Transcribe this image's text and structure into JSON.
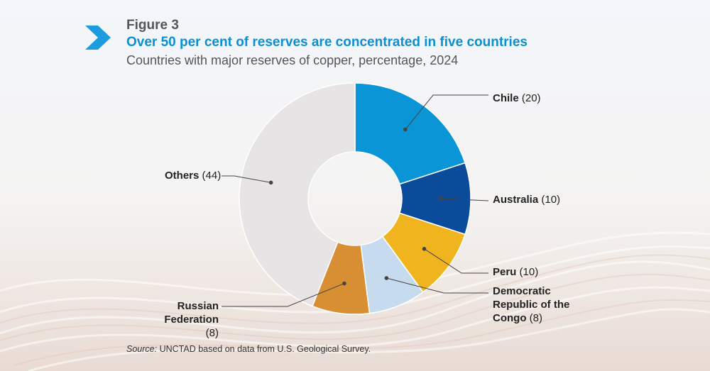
{
  "figure_label": "Figure 3",
  "chart_data": {
    "type": "pie",
    "donut": true,
    "title": "Over 50 per cent of reserves are concentrated in five countries",
    "subtitle": "Countries with major reserves of copper, percentage, 2024",
    "slices": [
      {
        "name": "Chile",
        "value": 20,
        "value_label": "(20)",
        "color": "#0a95d6"
      },
      {
        "name": "Australia",
        "value": 10,
        "value_label": "(10)",
        "color": "#0a4c9a"
      },
      {
        "name": "Peru",
        "value": 10,
        "value_label": "(10)",
        "color": "#f0b51e"
      },
      {
        "name": "Democratic Republic of the Congo",
        "name_lines": [
          "Democratic",
          "Republic of the",
          "Congo"
        ],
        "value": 8,
        "value_label": "(8)",
        "color": "#c7dbee"
      },
      {
        "name": "Russian Federation",
        "value": 8,
        "value_label": "(8)",
        "color": "#d88e33"
      },
      {
        "name": "Others",
        "value": 44,
        "value_label": "(44)",
        "color": "#e6e4e4"
      }
    ]
  },
  "source": {
    "prefix": "Source:",
    "text": " UNCTAD based on data from U.S. Geological Survey."
  },
  "colors": {
    "accent": "#0a8fd1",
    "chevron": "#1b9be0"
  }
}
